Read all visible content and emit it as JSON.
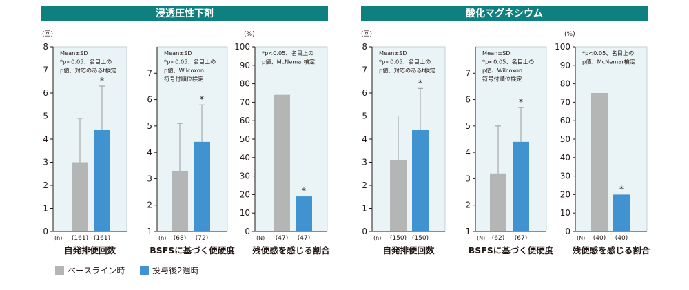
{
  "groups": [
    {
      "title": "浸透圧性下剤"
    },
    {
      "title": "酸化マグネシウム"
    }
  ],
  "legend": [
    {
      "label": "ベースライン時",
      "color": "#b4b5b5"
    },
    {
      "label": "投与後2週時",
      "color": "#4192d0"
    }
  ],
  "chart_data": [
    {
      "type": "bar",
      "group": 0,
      "xlabel": "自発排便回数",
      "unit": "(回)",
      "ylim": [
        0,
        8
      ],
      "yticks": [
        0,
        1,
        2,
        3,
        4,
        5,
        6,
        7,
        8
      ],
      "n_prefix": "(n)",
      "notes": [
        "Mean±SD",
        "*p<0.05、名目上の",
        "p値、対応のあるt検定"
      ],
      "bars": [
        {
          "series": "ベースライン時",
          "value": 3.0,
          "err": 4.9,
          "n": "(161)",
          "sig": ""
        },
        {
          "series": "投与後2週時",
          "value": 4.4,
          "err": 6.3,
          "n": "(161)",
          "sig": "*"
        }
      ]
    },
    {
      "type": "bar",
      "group": 0,
      "xlabel": "BSFSに基づく便硬度",
      "unit": "",
      "ylim": [
        1,
        8
      ],
      "yticks": [
        1,
        2,
        3,
        4,
        5,
        6,
        7
      ],
      "n_prefix": "(n)",
      "notes": [
        "Mean±SD",
        "*p<0.05、名目上の",
        "p値、Wilcoxon",
        "符号付順位検定"
      ],
      "bars": [
        {
          "series": "ベースライン時",
          "value": 3.3,
          "err": 5.1,
          "n": "(68)",
          "sig": ""
        },
        {
          "series": "投与後2週時",
          "value": 4.4,
          "err": 5.8,
          "n": "(72)",
          "sig": "*"
        }
      ]
    },
    {
      "type": "bar",
      "group": 0,
      "xlabel": "残便感を感じる割合",
      "unit": "(%)",
      "ylim": [
        0,
        100
      ],
      "yticks": [
        0,
        10,
        20,
        30,
        40,
        50,
        60,
        70,
        80,
        90,
        100
      ],
      "n_prefix": "(N)",
      "notes": [
        "*p<0.05、名目上の",
        "p値、McNemar検定"
      ],
      "bars": [
        {
          "series": "ベースライン時",
          "value": 74,
          "err": null,
          "n": "(47)",
          "sig": ""
        },
        {
          "series": "投与後2週時",
          "value": 19,
          "err": null,
          "n": "(47)",
          "sig": "*"
        }
      ]
    },
    {
      "type": "bar",
      "group": 1,
      "xlabel": "自発排便回数",
      "unit": "(回)",
      "ylim": [
        0,
        8
      ],
      "yticks": [
        0,
        1,
        2,
        3,
        4,
        5,
        6,
        7,
        8
      ],
      "n_prefix": "(n)",
      "notes": [
        "Mean±SD",
        "*p<0.05、名目上の",
        "p値、対応のあるt検定"
      ],
      "bars": [
        {
          "series": "ベースライン時",
          "value": 3.1,
          "err": 5.0,
          "n": "(150)",
          "sig": ""
        },
        {
          "series": "投与後2週時",
          "value": 4.4,
          "err": 6.2,
          "n": "(150)",
          "sig": "*"
        }
      ]
    },
    {
      "type": "bar",
      "group": 1,
      "xlabel": "BSFSに基づく便硬度",
      "unit": "",
      "ylim": [
        1,
        8
      ],
      "yticks": [
        1,
        2,
        3,
        4,
        5,
        6,
        7
      ],
      "n_prefix": "(N)",
      "notes": [
        "Mean±SD",
        "*p<0.05、名目上の",
        "p値、Wilcoxon",
        "符号付順位検定"
      ],
      "bars": [
        {
          "series": "ベースライン時",
          "value": 3.2,
          "err": 5.0,
          "n": "(62)",
          "sig": ""
        },
        {
          "series": "投与後2週時",
          "value": 4.4,
          "err": 5.7,
          "n": "(67)",
          "sig": "*"
        }
      ]
    },
    {
      "type": "bar",
      "group": 1,
      "xlabel": "残便感を感じる割合",
      "unit": "(%)",
      "ylim": [
        0,
        100
      ],
      "yticks": [
        0,
        10,
        20,
        30,
        40,
        50,
        60,
        70,
        80,
        90,
        100
      ],
      "n_prefix": "(N)",
      "notes": [
        "*p<0.05、名目上の",
        "p値、McNemar検定"
      ],
      "bars": [
        {
          "series": "ベースライン時",
          "value": 75,
          "err": null,
          "n": "(40)",
          "sig": ""
        },
        {
          "series": "投与後2週時",
          "value": 20,
          "err": null,
          "n": "(40)",
          "sig": "*"
        }
      ]
    }
  ]
}
